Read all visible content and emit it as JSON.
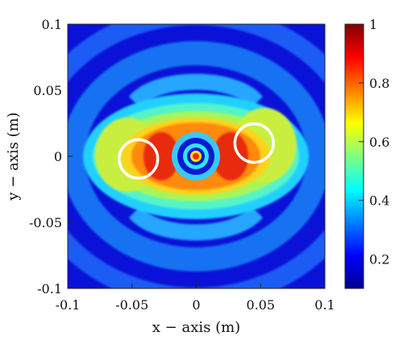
{
  "chart_data": {
    "type": "heatmap",
    "title": "",
    "xlabel": "x − axis (m)",
    "ylabel": "y − axis (m)",
    "xlim": [
      -0.1,
      0.1
    ],
    "ylim": [
      -0.1,
      0.1
    ],
    "x_ticks": [
      "-0.1",
      "-0.05",
      "0",
      "0.05",
      "0.1"
    ],
    "y_ticks": [
      "0.1",
      "0.05",
      "0",
      "-0.05",
      "-0.1"
    ],
    "colorbar": {
      "colormap": "jet",
      "range": [
        0.1,
        1
      ],
      "ticks": [
        "1",
        "0.8",
        "0.6",
        "0.4",
        "0.2"
      ]
    },
    "markers": [
      {
        "shape": "circle",
        "color": "#ffffff",
        "center": [
          -0.045,
          -0.002
        ],
        "radius": 0.015
      },
      {
        "shape": "circle",
        "color": "#ffffff",
        "center": [
          0.045,
          0.01
        ],
        "radius": 0.015
      }
    ]
  }
}
